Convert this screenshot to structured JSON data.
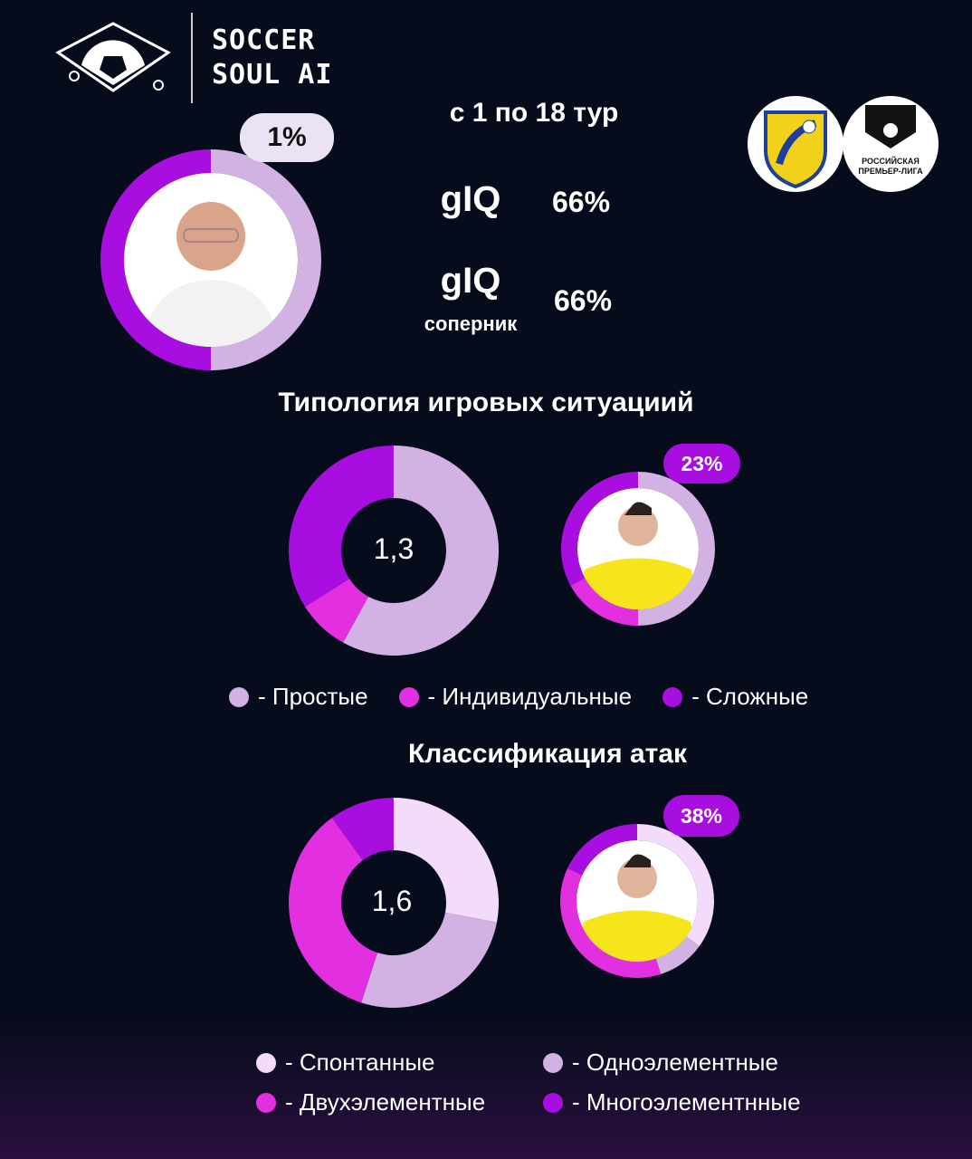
{
  "brand": {
    "line1": "SOCCER",
    "line2": "SOUL AI"
  },
  "period": "с 1 по 18 тур",
  "coach": {
    "percent": "1%",
    "ring": [
      {
        "label": "Простые",
        "value": 50,
        "color": "#d1b2e3"
      },
      {
        "label": "Сложные",
        "value": 50,
        "color": "#a90ee0"
      }
    ]
  },
  "giq": {
    "label": "gIQ",
    "value": "66%",
    "opp_label": "gIQ",
    "opp_sub": "соперник",
    "opp_value": "66%"
  },
  "logos": {
    "club": "ФК РОСТОВ",
    "league": "РОССИЙСКАЯ ПРЕМЬЕР-ЛИГА"
  },
  "colors": {
    "light": "#f3dcfb",
    "lilac": "#d1b2e3",
    "pink": "#e22fe0",
    "purple": "#a90ee0"
  },
  "chart_data": [
    {
      "type": "pie",
      "title": "Типология игровых ситуациий",
      "center_label": "1,3",
      "categories": [
        "Простые",
        "Индивидуальные",
        "Сложные"
      ],
      "values": [
        58,
        8,
        34
      ],
      "player": {
        "percent": "23%",
        "values": [
          50,
          17,
          33
        ]
      }
    },
    {
      "type": "pie",
      "title": "Классификация атак",
      "center_label": "1,6",
      "categories": [
        "Спонтанные",
        "Одноэлементные",
        "Двухэлементные",
        "Многоэлементнные"
      ],
      "values": [
        28,
        27,
        35,
        10
      ],
      "player": {
        "percent": "38%",
        "values": [
          35,
          10,
          37,
          18
        ]
      }
    }
  ],
  "legend1": [
    "- Простые",
    "- Индивидуальные",
    "- Сложные"
  ],
  "legend2": [
    "- Спонтанные",
    "- Одноэлементные",
    "- Двухэлементные",
    "- Многоэлементнные"
  ]
}
